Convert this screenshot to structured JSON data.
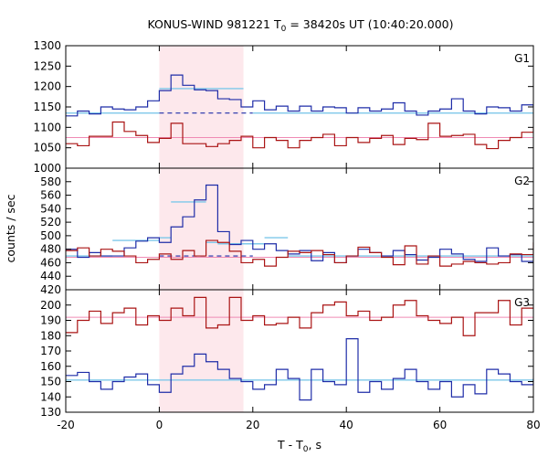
{
  "chart_data": {
    "type": "line",
    "title_parts": [
      "KONUS-WIND 981221 T",
      "0",
      " = 38420s UT (10:40:20.000)"
    ],
    "xlabel_parts": [
      "T - T",
      "0",
      ", s"
    ],
    "ylabel": "counts / sec",
    "xlim": [
      -20,
      80
    ],
    "x_ticks": [
      -20,
      0,
      20,
      40,
      60,
      80
    ],
    "x_tick_labels": [
      "-20",
      "0",
      "20",
      "40",
      "60",
      "80"
    ],
    "highlight_interval": [
      0,
      18
    ],
    "bin_edges": [
      -20,
      -17.5,
      -15,
      -12.5,
      -10,
      -7.5,
      -5,
      -2.5,
      0,
      2.5,
      5,
      7.5,
      10,
      12.5,
      15,
      17.5,
      20,
      22.5,
      25,
      27.5,
      30,
      32.5,
      35,
      37.5,
      40,
      42.5,
      45,
      47.5,
      50,
      52.5,
      55,
      57.5,
      60,
      62.5,
      65,
      67.5,
      70,
      72.5,
      75,
      77.5,
      80
    ],
    "colors": {
      "blue_series": "#1f2da8",
      "red_series": "#aa1414",
      "fit_line": "#7ec8ea",
      "red_background": "#f08bb4",
      "highlight_fill": "#fde8ec"
    },
    "panels": [
      {
        "id": "G1",
        "label": "G1",
        "ylim": [
          1000,
          1300
        ],
        "y_ticks": [
          1000,
          1050,
          1100,
          1150,
          1200,
          1250,
          1300
        ],
        "series": [
          {
            "color": "blue",
            "values": [
              1128,
              1140,
              1133,
              1150,
              1145,
              1143,
              1150,
              1165,
              1190,
              1228,
              1203,
              1192,
              1190,
              1170,
              1168,
              1150,
              1165,
              1143,
              1152,
              1140,
              1152,
              1140,
              1150,
              1148,
              1135,
              1148,
              1140,
              1145,
              1160,
              1140,
              1130,
              1140,
              1145,
              1170,
              1140,
              1133,
              1150,
              1148,
              1140,
              1155,
              1150
            ]
          },
          {
            "color": "red",
            "values": [
              1060,
              1055,
              1078,
              1078,
              1113,
              1090,
              1080,
              1063,
              1073,
              1110,
              1060,
              1060,
              1053,
              1060,
              1068,
              1078,
              1050,
              1075,
              1068,
              1050,
              1068,
              1075,
              1083,
              1055,
              1075,
              1063,
              1073,
              1080,
              1058,
              1073,
              1070,
              1110,
              1078,
              1080,
              1083,
              1058,
              1048,
              1068,
              1075,
              1088,
              1100
            ]
          }
        ],
        "blue_background": 1135,
        "red_background": 1075,
        "blue_fit_segments": [
          {
            "x": [
              -20,
              0
            ],
            "y": 1135,
            "style": "solid"
          },
          {
            "x": [
              0,
              18
            ],
            "y": 1195,
            "style": "solid"
          },
          {
            "x": [
              0,
              20
            ],
            "y": 1135,
            "style": "dashed"
          },
          {
            "x": [
              20,
              80
            ],
            "y": 1135,
            "style": "solid"
          }
        ]
      },
      {
        "id": "G2",
        "label": "G2",
        "ylim": [
          420,
          600
        ],
        "y_ticks": [
          420,
          440,
          460,
          480,
          500,
          520,
          540,
          560,
          580
        ],
        "series": [
          {
            "color": "blue",
            "values": [
              480,
              468,
              475,
              470,
              470,
              482,
              492,
              497,
              490,
              513,
              528,
              553,
              575,
              506,
              487,
              493,
              480,
              488,
              478,
              473,
              478,
              463,
              475,
              460,
              470,
              480,
              475,
              470,
              478,
              472,
              464,
              468,
              480,
              473,
              465,
              462,
              482,
              470,
              472,
              462,
              470
            ]
          },
          {
            "color": "red",
            "values": [
              478,
              482,
              470,
              480,
              477,
              470,
              460,
              465,
              473,
              465,
              478,
              470,
              493,
              490,
              477,
              460,
              465,
              455,
              468,
              477,
              475,
              478,
              472,
              460,
              470,
              483,
              475,
              468,
              457,
              485,
              458,
              470,
              455,
              458,
              462,
              460,
              458,
              460,
              473,
              472,
              490
            ]
          }
        ],
        "blue_background": 470,
        "red_background": 468,
        "blue_fit_segments": [
          {
            "x": [
              -20,
              -10
            ],
            "y": 470,
            "style": "solid"
          },
          {
            "x": [
              -10,
              0
            ],
            "y": 493,
            "style": "solid"
          },
          {
            "x": [
              0,
              2.5
            ],
            "y": 497,
            "style": "solid"
          },
          {
            "x": [
              2.5,
              10
            ],
            "y": 550,
            "style": "solid"
          },
          {
            "x": [
              10,
              12.5
            ],
            "y": 490,
            "style": "solid"
          },
          {
            "x": [
              12.5,
              22.5
            ],
            "y": 488,
            "style": "solid"
          },
          {
            "x": [
              22.5,
              27.5
            ],
            "y": 497,
            "style": "solid"
          },
          {
            "x": [
              27.5,
              80
            ],
            "y": 470,
            "style": "solid"
          },
          {
            "x": [
              0,
              20
            ],
            "y": 470,
            "style": "dashed"
          }
        ]
      },
      {
        "id": "G3",
        "label": "G3",
        "ylim": [
          130,
          210
        ],
        "y_ticks": [
          130,
          140,
          150,
          160,
          170,
          180,
          190,
          200
        ],
        "series": [
          {
            "color": "blue",
            "values": [
              154,
              156,
              150,
              145,
              150,
              153,
              155,
              148,
              143,
              155,
              160,
              168,
              163,
              158,
              152,
              150,
              145,
              148,
              158,
              152,
              138,
              158,
              150,
              148,
              178,
              143,
              150,
              145,
              152,
              158,
              150,
              145,
              150,
              140,
              148,
              142,
              158,
              155,
              150,
              148,
              152
            ]
          },
          {
            "color": "red",
            "values": [
              182,
              190,
              196,
              188,
              195,
              198,
              187,
              193,
              190,
              198,
              193,
              205,
              185,
              187,
              205,
              190,
              193,
              187,
              188,
              192,
              185,
              195,
              200,
              202,
              193,
              196,
              190,
              192,
              200,
              203,
              193,
              190,
              188,
              192,
              180,
              195,
              195,
              203,
              187,
              198,
              198
            ]
          }
        ],
        "blue_background": 151,
        "red_background": 192,
        "blue_fit_segments": [
          {
            "x": [
              -20,
              80
            ],
            "y": 151,
            "style": "solid"
          }
        ]
      }
    ]
  }
}
